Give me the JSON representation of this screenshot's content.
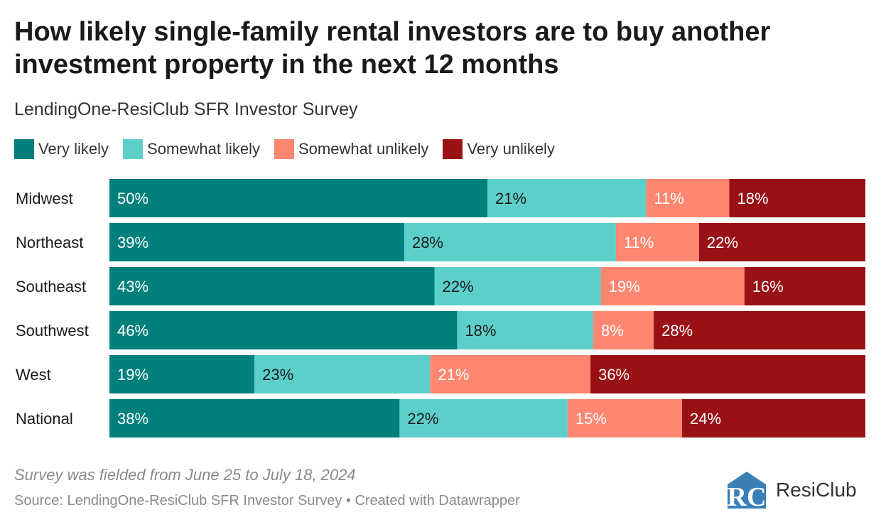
{
  "chart_data": {
    "type": "bar",
    "orientation": "horizontal",
    "stacked": true,
    "title": "How likely single-family rental investors are to buy another investment property in the next 12 months",
    "subtitle": "LendingOne-ResiClub SFR Investor Survey",
    "categories": [
      "Midwest",
      "Northeast",
      "Southeast",
      "Southwest",
      "West",
      "National"
    ],
    "series": [
      {
        "name": "Very likely",
        "color": "#00807c",
        "values": [
          50,
          39,
          43,
          46,
          19,
          38
        ]
      },
      {
        "name": "Somewhat likely",
        "color": "#5ccfca",
        "values": [
          21,
          28,
          22,
          18,
          23,
          22
        ]
      },
      {
        "name": "Somewhat unlikely",
        "color": "#ff8670",
        "values": [
          11,
          11,
          19,
          8,
          21,
          15
        ]
      },
      {
        "name": "Very unlikely",
        "color": "#9a1115",
        "values": [
          18,
          22,
          16,
          28,
          36,
          24
        ]
      }
    ],
    "value_suffix": "%",
    "xlim": [
      0,
      100
    ],
    "legend_position": "top-left",
    "grid": false
  },
  "footer": {
    "note": "Survey was fielded from June 25 to July 18, 2024",
    "source": "Source: LendingOne-ResiClub SFR Investor Survey • Created with Datawrapper"
  },
  "logo": {
    "mark": "RC",
    "name": "ResiClub",
    "color": "#3a7fb6"
  }
}
